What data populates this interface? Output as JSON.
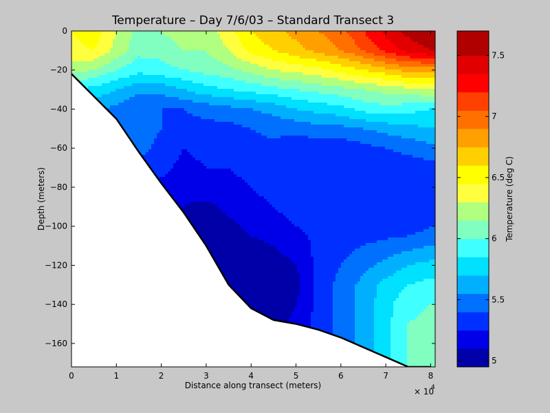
{
  "chart_data": {
    "type": "heatmap",
    "subtype": "filled-contour",
    "title": "Temperature – Day 7/6/03 – Standard Transect 3",
    "xlabel": "Distance along transect (meters)",
    "ylabel": "Depth (meters)",
    "x_exponent_label": "× 10",
    "x_exponent_power": "4",
    "xlim": [
      0,
      81000
    ],
    "ylim": [
      -172,
      0
    ],
    "x_ticks": [
      0,
      10000,
      20000,
      30000,
      40000,
      50000,
      60000,
      70000,
      80000
    ],
    "x_tick_labels": [
      "0",
      "1",
      "2",
      "3",
      "4",
      "5",
      "6",
      "7",
      "8"
    ],
    "y_ticks": [
      0,
      -20,
      -40,
      -60,
      -80,
      -100,
      -120,
      -140,
      -160
    ],
    "y_tick_labels": [
      "0",
      "−20",
      "−40",
      "−60",
      "−80",
      "−100",
      "−120",
      "−140",
      "−160"
    ],
    "colorbar": {
      "label": "Temperature (deg C)",
      "range": [
        4.95,
        7.7
      ],
      "ticks": [
        5,
        5.5,
        6,
        6.5,
        7,
        7.5
      ],
      "tick_labels": [
        "5",
        "5.5",
        "6",
        "6.5",
        "7",
        "7.5"
      ],
      "levels": [
        4.95,
        5.1,
        5.25,
        5.4,
        5.55,
        5.7,
        5.85,
        6.0,
        6.15,
        6.3,
        6.45,
        6.6,
        6.75,
        6.9,
        7.05,
        7.2,
        7.35,
        7.5,
        7.7
      ],
      "colors": [
        "#0000a8",
        "#0000e8",
        "#0030ff",
        "#0070ff",
        "#00b0ff",
        "#00e0ff",
        "#40ffff",
        "#80ffc0",
        "#b0ff80",
        "#ffff40",
        "#ffff00",
        "#ffd000",
        "#ffa000",
        "#ff7000",
        "#ff4000",
        "#ff0000",
        "#e00000",
        "#b00000"
      ]
    },
    "bottom_profile": {
      "x": [
        0,
        10000,
        15000,
        20000,
        25000,
        30000,
        35000,
        40000,
        45000,
        50000,
        55000,
        60000,
        65000,
        70000,
        75000,
        80000
      ],
      "depth": [
        -22,
        -45,
        -62,
        -78,
        -93,
        -110,
        -130,
        -142,
        -148,
        -150,
        -153,
        -157,
        -162,
        -167,
        -172,
        -172
      ]
    },
    "temperature_field": {
      "x": [
        0,
        5000,
        10000,
        15000,
        20000,
        25000,
        30000,
        35000,
        40000,
        45000,
        50000,
        55000,
        60000,
        65000,
        70000,
        75000,
        80000
      ],
      "depth": [
        0,
        -10,
        -20,
        -30,
        -40,
        -50,
        -60,
        -70,
        -80,
        -90,
        -100,
        -110,
        -120,
        -130,
        -140,
        -150,
        -160,
        -170
      ],
      "values": [
        [
          6.45,
          6.55,
          6.3,
          6.1,
          6.15,
          6.25,
          6.2,
          6.4,
          6.6,
          6.7,
          6.8,
          6.9,
          7.0,
          7.2,
          7.4,
          7.55,
          7.65
        ],
        [
          6.4,
          6.45,
          6.25,
          6.05,
          6.05,
          6.15,
          6.15,
          6.3,
          6.5,
          6.6,
          6.7,
          6.8,
          6.9,
          7.05,
          7.25,
          7.4,
          7.5
        ],
        [
          6.2,
          6.15,
          6.0,
          5.9,
          5.95,
          6.0,
          6.05,
          6.1,
          6.2,
          6.3,
          6.35,
          6.4,
          6.5,
          6.6,
          6.7,
          6.8,
          6.8
        ],
        [
          5.85,
          5.8,
          5.7,
          5.6,
          5.6,
          5.7,
          5.8,
          5.85,
          5.9,
          5.95,
          6.0,
          6.05,
          6.1,
          6.15,
          6.2,
          6.25,
          6.3
        ],
        [
          5.7,
          5.6,
          5.5,
          5.4,
          5.4,
          5.4,
          5.45,
          5.5,
          5.55,
          5.6,
          5.7,
          5.75,
          5.8,
          5.9,
          5.95,
          5.9,
          5.85
        ],
        [
          5.6,
          5.5,
          5.45,
          5.5,
          5.4,
          5.35,
          5.35,
          5.35,
          5.4,
          5.45,
          5.45,
          5.5,
          5.5,
          5.55,
          5.6,
          5.65,
          5.7
        ],
        [
          5.5,
          5.45,
          5.4,
          5.45,
          5.35,
          5.25,
          5.3,
          5.3,
          5.35,
          5.35,
          5.3,
          5.3,
          5.3,
          5.35,
          5.4,
          5.45,
          5.5
        ],
        [
          5.45,
          5.4,
          5.35,
          5.35,
          5.3,
          5.2,
          5.25,
          5.25,
          5.3,
          5.3,
          5.3,
          5.35,
          5.3,
          5.3,
          5.3,
          5.3,
          5.35
        ],
        [
          5.4,
          5.35,
          5.3,
          5.25,
          5.2,
          5.15,
          5.2,
          5.2,
          5.25,
          5.3,
          5.3,
          5.35,
          5.3,
          5.3,
          5.3,
          5.3,
          5.35
        ],
        [
          5.35,
          5.3,
          5.25,
          5.2,
          5.15,
          5.1,
          5.05,
          5.15,
          5.2,
          5.25,
          5.3,
          5.3,
          5.3,
          5.3,
          5.3,
          5.3,
          5.35
        ],
        [
          5.3,
          5.25,
          5.2,
          5.15,
          5.1,
          5.05,
          5.0,
          5.05,
          5.15,
          5.2,
          5.25,
          5.3,
          5.3,
          5.3,
          5.3,
          5.3,
          5.4
        ],
        [
          5.3,
          5.25,
          5.2,
          5.1,
          5.05,
          5.0,
          4.98,
          5.0,
          5.05,
          5.1,
          5.15,
          5.3,
          5.35,
          5.4,
          5.45,
          5.5,
          5.55
        ],
        [
          5.3,
          5.25,
          5.2,
          5.1,
          5.05,
          5.0,
          4.98,
          4.98,
          5.0,
          5.05,
          5.1,
          5.3,
          5.4,
          5.5,
          5.6,
          5.7,
          5.75
        ],
        [
          5.3,
          5.25,
          5.2,
          5.1,
          5.05,
          5.0,
          4.98,
          4.98,
          4.98,
          5.0,
          5.05,
          5.3,
          5.45,
          5.6,
          5.75,
          5.85,
          5.9
        ],
        [
          5.3,
          5.25,
          5.2,
          5.1,
          5.05,
          5.0,
          4.98,
          4.98,
          4.98,
          5.0,
          5.1,
          5.3,
          5.45,
          5.6,
          5.8,
          5.95,
          6.0
        ],
        [
          5.3,
          5.25,
          5.2,
          5.1,
          5.05,
          5.0,
          4.98,
          4.98,
          4.98,
          5.0,
          5.15,
          5.3,
          5.45,
          5.6,
          5.8,
          6.0,
          6.05
        ],
        [
          5.3,
          5.25,
          5.2,
          5.1,
          5.05,
          5.0,
          4.98,
          4.98,
          4.98,
          5.0,
          5.15,
          5.3,
          5.45,
          5.6,
          5.8,
          6.0,
          6.05
        ],
        [
          5.3,
          5.25,
          5.2,
          5.1,
          5.05,
          5.0,
          4.98,
          4.98,
          4.98,
          5.0,
          5.15,
          5.3,
          5.45,
          5.6,
          5.8,
          6.0,
          6.05
        ]
      ]
    }
  }
}
